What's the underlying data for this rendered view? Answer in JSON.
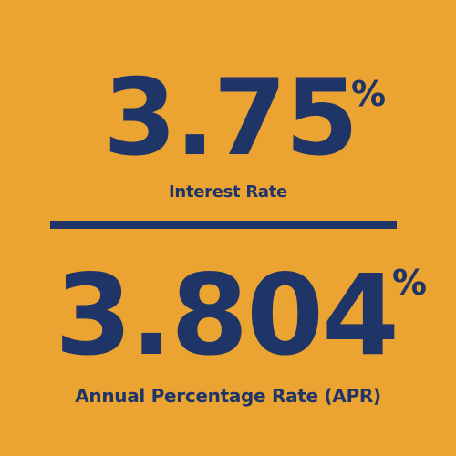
{
  "colors": {
    "background": "#EBA431",
    "text": "#1F3568"
  },
  "interest_rate": {
    "value": "3.75",
    "symbol": "%",
    "label": "Interest Rate"
  },
  "apr": {
    "value": "3.804",
    "symbol": "%",
    "label": "Annual Percentage Rate (APR)"
  }
}
